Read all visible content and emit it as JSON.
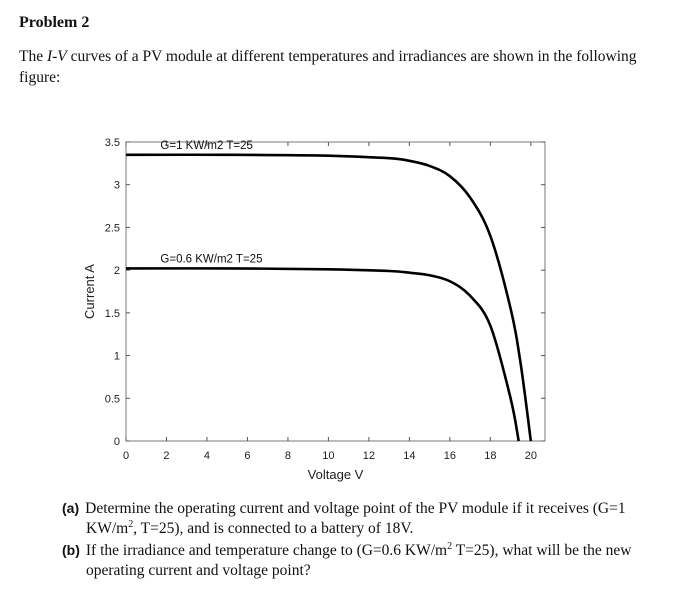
{
  "problem": {
    "title": "Problem 2",
    "intro_pre": "The ",
    "intro_curve": "I-V",
    "intro_post": " curves of a PV module at different temperatures and irradiances are shown in the following figure:"
  },
  "questions": {
    "a": {
      "label": "(a)",
      "line1": "Determine the operating current and voltage point of the PV module if it receives (G=1",
      "line2_a": "KW/m",
      "line2_sup": "2",
      "line2_b": ", T=25), and is connected to a battery of 18V."
    },
    "b": {
      "label": "(b)",
      "line1_a": "If the irradiance and temperature change to (G=0.6 KW/m",
      "line1_sup": "2",
      "line1_b": " T=25), what will be the new",
      "line2": "operating current and voltage point?"
    }
  },
  "chart_data": {
    "type": "line",
    "xlabel": "Voltage V",
    "ylabel": "Current A",
    "xlim": [
      0,
      20.7
    ],
    "ylim": [
      0,
      3.5
    ],
    "x_ticks": [
      0,
      2,
      4,
      6,
      8,
      10,
      12,
      14,
      16,
      18,
      20
    ],
    "x_tick_labels": [
      "0",
      "2",
      "4",
      "6",
      "8",
      "10",
      "12",
      "14",
      "16",
      "18",
      "20"
    ],
    "y_ticks": [
      0,
      0.5,
      1,
      1.5,
      2,
      2.5,
      3,
      3.5
    ],
    "y_tick_labels": [
      "0",
      "0.5",
      "1",
      "1.5",
      "2",
      "2.5",
      "3",
      "3.5"
    ],
    "grid": false,
    "series": [
      {
        "name": "G=1 KW/m2   T=25",
        "x": [
          0,
          5,
          10,
          13,
          14,
          15,
          16,
          17,
          18,
          19,
          19.5,
          20
        ],
        "y": [
          3.35,
          3.35,
          3.34,
          3.31,
          3.28,
          3.22,
          3.1,
          2.85,
          2.4,
          1.55,
          0.9,
          0
        ]
      },
      {
        "name": "G=0.6 KW/m2   T=25",
        "x": [
          0,
          5,
          10,
          13,
          14,
          15,
          16,
          17,
          18,
          19,
          19.4
        ],
        "y": [
          2.02,
          2.02,
          2.01,
          1.99,
          1.97,
          1.94,
          1.87,
          1.7,
          1.35,
          0.5,
          0
        ]
      }
    ]
  }
}
